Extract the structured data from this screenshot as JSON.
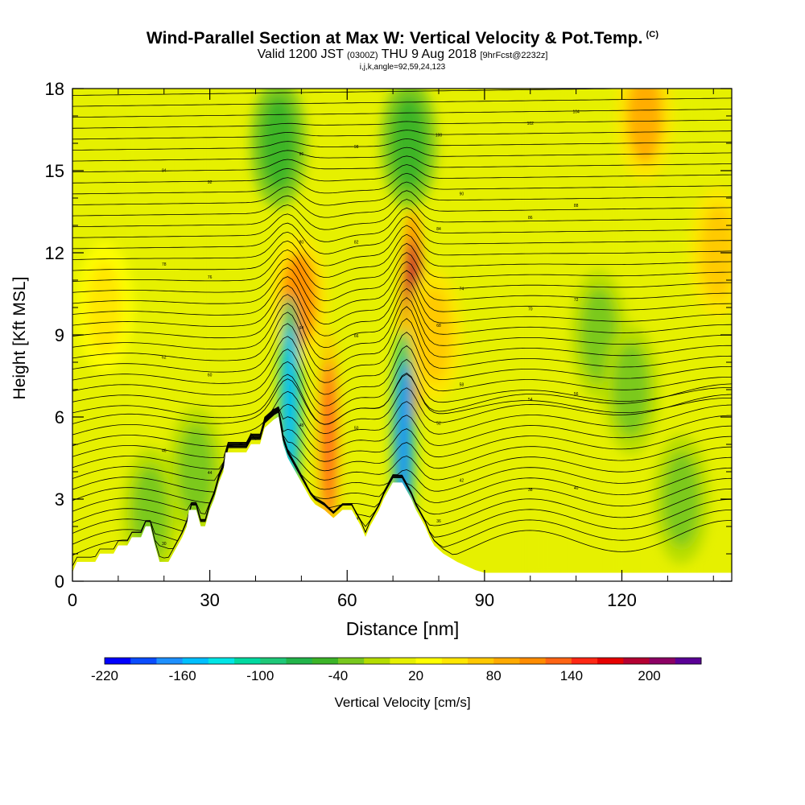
{
  "header": {
    "title": "Wind-Parallel Section at Max W: Vertical Velocity & Pot.Temp.",
    "title_mark": "(C)",
    "valid_prefix": "Valid 1200 JST",
    "valid_utc": "(0300Z)",
    "valid_date": "THU 9 Aug 2018",
    "valid_fcst": "[9hrFcst@2232z]",
    "indices": "i,j,k,angle=92,59,24,123"
  },
  "chart_data": {
    "type": "heatmap",
    "xlabel": "Distance [nm]",
    "ylabel": "Height [Kft MSL]",
    "xlim": [
      0,
      144
    ],
    "ylim": [
      0,
      18
    ],
    "xticks": [
      0,
      30,
      60,
      90,
      120
    ],
    "yticks": [
      0,
      3,
      6,
      9,
      12,
      15,
      18
    ],
    "colorbar": {
      "label": "Vertical Velocity [cm/s]",
      "ticks": [
        -220,
        -160,
        -100,
        -40,
        20,
        80,
        140,
        200
      ],
      "levels": [
        -220,
        -200,
        -180,
        -160,
        -140,
        -120,
        -100,
        -80,
        -60,
        -40,
        -20,
        0,
        20,
        40,
        60,
        80,
        100,
        120,
        140,
        160,
        180,
        200,
        220
      ],
      "colors": [
        "#0000ff",
        "#0a4cff",
        "#1e90ff",
        "#00bfff",
        "#00e5e5",
        "#00d9a0",
        "#1ec878",
        "#22b44a",
        "#3cb428",
        "#78c81e",
        "#b4dc00",
        "#e6f000",
        "#ffff00",
        "#ffe600",
        "#ffc800",
        "#ffaa00",
        "#ff8c00",
        "#ff6414",
        "#ff2814",
        "#e60000",
        "#b40032",
        "#8c0064",
        "#5a0096"
      ]
    },
    "updrafts": [
      {
        "x": 49.5,
        "y": 10.3,
        "value": 90
      },
      {
        "x": 74.3,
        "y": 9.6,
        "value": 180
      },
      {
        "x": 56.0,
        "y": 5.2,
        "value": 110
      },
      {
        "x": 125.0,
        "y": 17.0,
        "value": 70
      },
      {
        "x": 141.0,
        "y": 12.0,
        "value": 60
      },
      {
        "x": 79.0,
        "y": 9.0,
        "value": 60
      },
      {
        "x": 7.0,
        "y": 10.0,
        "value": 30
      }
    ],
    "downdrafts": [
      {
        "x": 47.5,
        "y": 6.5,
        "value": -170
      },
      {
        "x": 72.3,
        "y": 5.2,
        "value": -190
      },
      {
        "x": 45.0,
        "y": 16.0,
        "value": -60
      },
      {
        "x": 73.5,
        "y": 16.0,
        "value": -60
      },
      {
        "x": 115.0,
        "y": 9.0,
        "value": -40
      },
      {
        "x": 122.0,
        "y": 7.0,
        "value": -40
      },
      {
        "x": 133.0,
        "y": 3.0,
        "value": -40
      },
      {
        "x": 17.0,
        "y": 2.5,
        "value": -50
      },
      {
        "x": 27.0,
        "y": 4.0,
        "value": -50
      }
    ],
    "terrain": [
      [
        0,
        0.3
      ],
      [
        1,
        0.7
      ],
      [
        5,
        0.7
      ],
      [
        6,
        1.0
      ],
      [
        9,
        1.0
      ],
      [
        10,
        1.3
      ],
      [
        12,
        1.3
      ],
      [
        13,
        1.6
      ],
      [
        15,
        1.6
      ],
      [
        16,
        2.0
      ],
      [
        17,
        2.0
      ],
      [
        18,
        1.3
      ],
      [
        19,
        0.7
      ],
      [
        21,
        0.7
      ],
      [
        22,
        1.0
      ],
      [
        23,
        1.3
      ],
      [
        24,
        1.6
      ],
      [
        25,
        2.0
      ],
      [
        25.5,
        2.6
      ],
      [
        27,
        2.6
      ],
      [
        28,
        2.0
      ],
      [
        29,
        2.0
      ],
      [
        30,
        2.6
      ],
      [
        31,
        3.0
      ],
      [
        32,
        3.6
      ],
      [
        33,
        4.0
      ],
      [
        33.5,
        4.7
      ],
      [
        38,
        4.7
      ],
      [
        39,
        5.0
      ],
      [
        41,
        5.0
      ],
      [
        42,
        5.6
      ],
      [
        44,
        5.9
      ],
      [
        45,
        6.0
      ],
      [
        46,
        5.0
      ],
      [
        47,
        4.5
      ],
      [
        49,
        3.9
      ],
      [
        50,
        3.6
      ],
      [
        51,
        3.3
      ],
      [
        52,
        3.0
      ],
      [
        53,
        2.8
      ],
      [
        55,
        2.6
      ],
      [
        57,
        2.3
      ],
      [
        59,
        2.6
      ],
      [
        61,
        2.6
      ],
      [
        62,
        2.3
      ],
      [
        63,
        2.0
      ],
      [
        64,
        1.6
      ],
      [
        65,
        2.0
      ],
      [
        66,
        2.3
      ],
      [
        67,
        2.6
      ],
      [
        68,
        3.0
      ],
      [
        69,
        3.3
      ],
      [
        70,
        3.6
      ],
      [
        71,
        3.6
      ],
      [
        72,
        3.6
      ],
      [
        73,
        3.3
      ],
      [
        74,
        3.0
      ],
      [
        75,
        2.6
      ],
      [
        76,
        2.3
      ],
      [
        77,
        2.0
      ],
      [
        78,
        1.6
      ],
      [
        79,
        1.3
      ],
      [
        81,
        1.0
      ],
      [
        84,
        0.7
      ],
      [
        88,
        0.4
      ],
      [
        90,
        0.3
      ],
      [
        144,
        0.3
      ]
    ],
    "theta_labels": [
      "30",
      "32",
      "34",
      "36",
      "38",
      "40",
      "42",
      "44",
      "46",
      "48",
      "50",
      "52",
      "54",
      "56",
      "58",
      "60",
      "62",
      "64",
      "66",
      "68",
      "70",
      "72",
      "74",
      "76",
      "78",
      "80",
      "82",
      "84",
      "86",
      "88",
      "90",
      "92",
      "94",
      "96",
      "98",
      "100",
      "102",
      "104",
      "106"
    ]
  }
}
